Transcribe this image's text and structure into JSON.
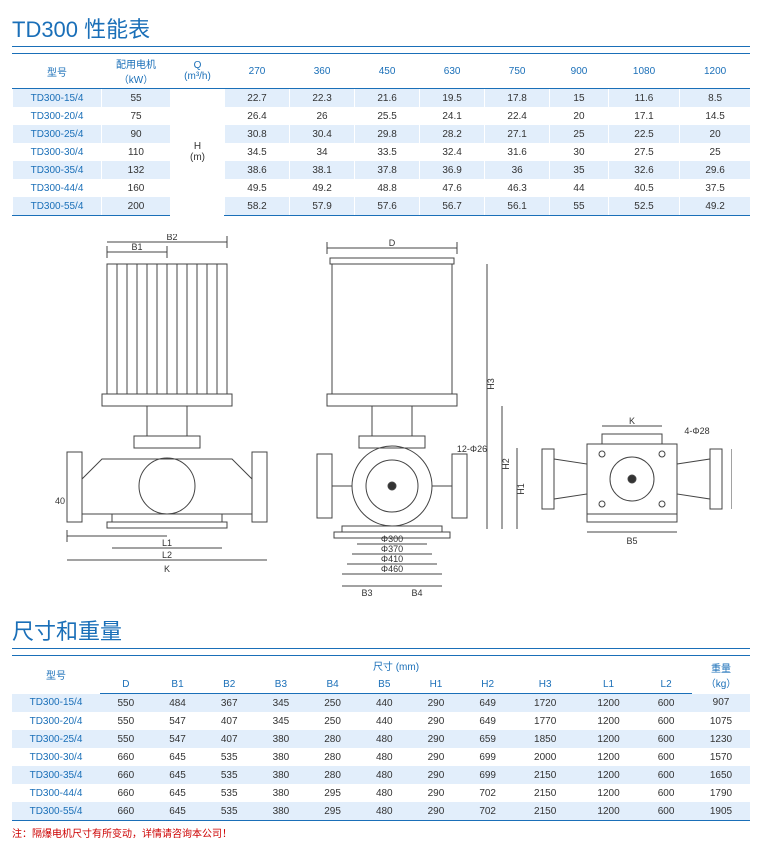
{
  "perf": {
    "title": "TD300 性能表",
    "headers": {
      "model": "型号",
      "motor": "配用电机",
      "motor_unit": "（kW）",
      "q": "Q",
      "q_unit": "(m³/h)",
      "h": "H",
      "h_unit": "(m)"
    },
    "q_values": [
      "270",
      "360",
      "450",
      "630",
      "750",
      "900",
      "1080",
      "1200"
    ],
    "rows": [
      {
        "model": "TD300-15/4",
        "kw": "55",
        "h": [
          "22.7",
          "22.3",
          "21.6",
          "19.5",
          "17.8",
          "15",
          "11.6",
          "8.5"
        ]
      },
      {
        "model": "TD300-20/4",
        "kw": "75",
        "h": [
          "26.4",
          "26",
          "25.5",
          "24.1",
          "22.4",
          "20",
          "17.1",
          "14.5"
        ]
      },
      {
        "model": "TD300-25/4",
        "kw": "90",
        "h": [
          "30.8",
          "30.4",
          "29.8",
          "28.2",
          "27.1",
          "25",
          "22.5",
          "20"
        ]
      },
      {
        "model": "TD300-30/4",
        "kw": "110",
        "h": [
          "34.5",
          "34",
          "33.5",
          "32.4",
          "31.6",
          "30",
          "27.5",
          "25"
        ]
      },
      {
        "model": "TD300-35/4",
        "kw": "132",
        "h": [
          "38.6",
          "38.1",
          "37.8",
          "36.9",
          "36",
          "35",
          "32.6",
          "29.6"
        ]
      },
      {
        "model": "TD300-44/4",
        "kw": "160",
        "h": [
          "49.5",
          "49.2",
          "48.8",
          "47.6",
          "46.3",
          "44",
          "40.5",
          "37.5"
        ]
      },
      {
        "model": "TD300-55/4",
        "kw": "200",
        "h": [
          "58.2",
          "57.9",
          "57.6",
          "56.7",
          "56.1",
          "55",
          "52.5",
          "49.2"
        ]
      }
    ]
  },
  "diagram": {
    "labels": [
      "B1",
      "B2",
      "D",
      "H3",
      "H2",
      "H1",
      "40",
      "L2",
      "L1",
      "K",
      "12-Φ26",
      "Φ300",
      "Φ370",
      "Φ410",
      "Φ460",
      "B3",
      "B4",
      "K",
      "4-Φ28",
      "B5",
      "B5"
    ]
  },
  "dim": {
    "title": "尺寸和重量",
    "headers": {
      "model": "型号",
      "dim": "尺寸 (mm)",
      "weight": "重量",
      "weight_unit": "（kg）",
      "cols": [
        "D",
        "B1",
        "B2",
        "B3",
        "B4",
        "B5",
        "H1",
        "H2",
        "H3",
        "L1",
        "L2"
      ]
    },
    "rows": [
      {
        "model": "TD300-15/4",
        "v": [
          "550",
          "484",
          "367",
          "345",
          "250",
          "440",
          "290",
          "649",
          "1720",
          "1200",
          "600"
        ],
        "w": "907"
      },
      {
        "model": "TD300-20/4",
        "v": [
          "550",
          "547",
          "407",
          "345",
          "250",
          "440",
          "290",
          "649",
          "1770",
          "1200",
          "600"
        ],
        "w": "1075"
      },
      {
        "model": "TD300-25/4",
        "v": [
          "550",
          "547",
          "407",
          "380",
          "280",
          "480",
          "290",
          "659",
          "1850",
          "1200",
          "600"
        ],
        "w": "1230"
      },
      {
        "model": "TD300-30/4",
        "v": [
          "660",
          "645",
          "535",
          "380",
          "280",
          "480",
          "290",
          "699",
          "2000",
          "1200",
          "600"
        ],
        "w": "1570"
      },
      {
        "model": "TD300-35/4",
        "v": [
          "660",
          "645",
          "535",
          "380",
          "280",
          "480",
          "290",
          "699",
          "2150",
          "1200",
          "600"
        ],
        "w": "1650"
      },
      {
        "model": "TD300-44/4",
        "v": [
          "660",
          "645",
          "535",
          "380",
          "295",
          "480",
          "290",
          "702",
          "2150",
          "1200",
          "600"
        ],
        "w": "1790"
      },
      {
        "model": "TD300-55/4",
        "v": [
          "660",
          "645",
          "535",
          "380",
          "295",
          "480",
          "290",
          "702",
          "2150",
          "1200",
          "600"
        ],
        "w": "1905"
      }
    ]
  },
  "note": "注：隔爆电机尺寸有所变动，详情请咨询本公司！",
  "colors": {
    "accent": "#1a6fb8",
    "row": "#e2eefb"
  }
}
